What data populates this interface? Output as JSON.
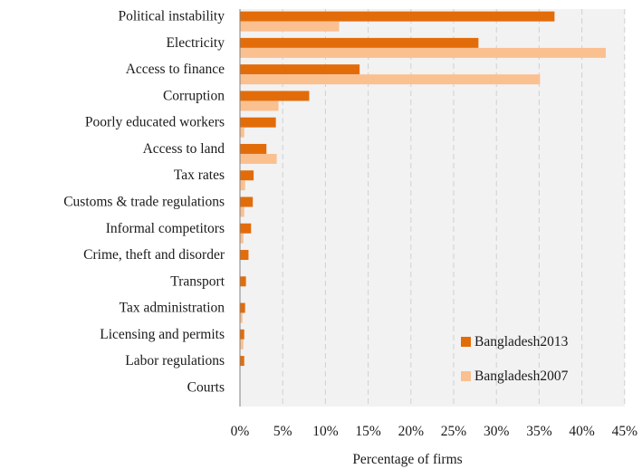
{
  "chart_data": {
    "type": "bar",
    "orientation": "horizontal",
    "categories": [
      "Political instability",
      "Electricity",
      "Access to finance",
      "Corruption",
      "Poorly educated workers",
      "Access to land",
      "Tax rates",
      "Customs & trade regulations",
      "Informal competitors",
      "Crime, theft and disorder",
      "Transport",
      "Tax administration",
      "Licensing and permits",
      "Labor regulations",
      "Courts"
    ],
    "series": [
      {
        "name": "Bangladesh2013",
        "color": "#e36c0a",
        "values": [
          36.8,
          27.9,
          14.0,
          8.1,
          4.2,
          3.1,
          1.6,
          1.5,
          1.3,
          1.0,
          0.7,
          0.6,
          0.5,
          0.5,
          0.0
        ]
      },
      {
        "name": "Bangladesh2007",
        "color": "#fac090",
        "values": [
          11.6,
          42.8,
          35.1,
          4.5,
          0.5,
          4.3,
          0.6,
          0.5,
          0.4,
          0.0,
          0.0,
          0.3,
          0.4,
          0.0,
          0.0
        ]
      }
    ],
    "xlabel": "Percentage of firms",
    "ylabel": "",
    "xlim": [
      0,
      45
    ],
    "ticks": [
      "0%",
      "5%",
      "10%",
      "15%",
      "20%",
      "25%",
      "30%",
      "35%",
      "40%",
      "45%"
    ],
    "grid": "vertical dashed",
    "legend_position": "bottom-right"
  }
}
